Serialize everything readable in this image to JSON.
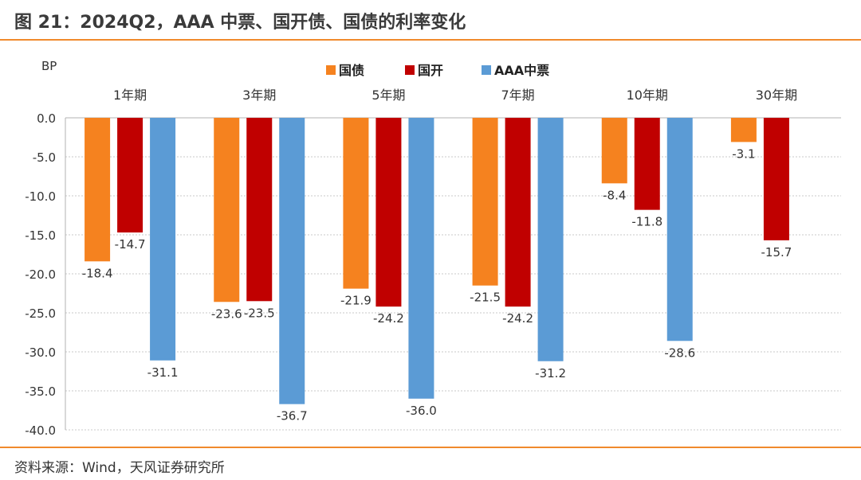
{
  "header": {
    "title": "图 21：2024Q2，AAA 中票、国开债、国债的利率变化"
  },
  "footer": {
    "source": "资料来源：Wind，天风证券研究所"
  },
  "chart_data": {
    "type": "bar",
    "ylabel": "BP",
    "ylim": [
      -40,
      0
    ],
    "yticks": [
      "0.0",
      "-5.0",
      "-10.0",
      "-15.0",
      "-20.0",
      "-25.0",
      "-30.0",
      "-35.0",
      "-40.0"
    ],
    "grid": true,
    "legend_position": "top-center",
    "category_labels_position": "top",
    "categories": [
      "1年期",
      "3年期",
      "5年期",
      "7年期",
      "10年期",
      "30年期"
    ],
    "series": [
      {
        "name": "国债",
        "color": "#f5821f",
        "values": [
          -18.4,
          -23.6,
          -21.9,
          -21.5,
          -8.4,
          -3.1
        ],
        "labels": [
          "-18.4",
          "-23.6",
          "-21.9",
          "-21.5",
          "-8.4",
          "-3.1"
        ]
      },
      {
        "name": "国开",
        "color": "#c00000",
        "values": [
          -14.7,
          -23.5,
          -24.2,
          -24.2,
          -11.8,
          -15.7
        ],
        "labels": [
          "-14.7",
          "-23.5",
          "-24.2",
          "-24.2",
          "-11.8",
          "-15.7"
        ]
      },
      {
        "name": "AAA中票",
        "color": "#5b9bd5",
        "values": [
          -31.1,
          -36.7,
          -36.0,
          -31.2,
          -28.6,
          null
        ],
        "labels": [
          "-31.1",
          "-36.7",
          "-36.0",
          "-31.2",
          "-28.6",
          null
        ]
      }
    ]
  }
}
